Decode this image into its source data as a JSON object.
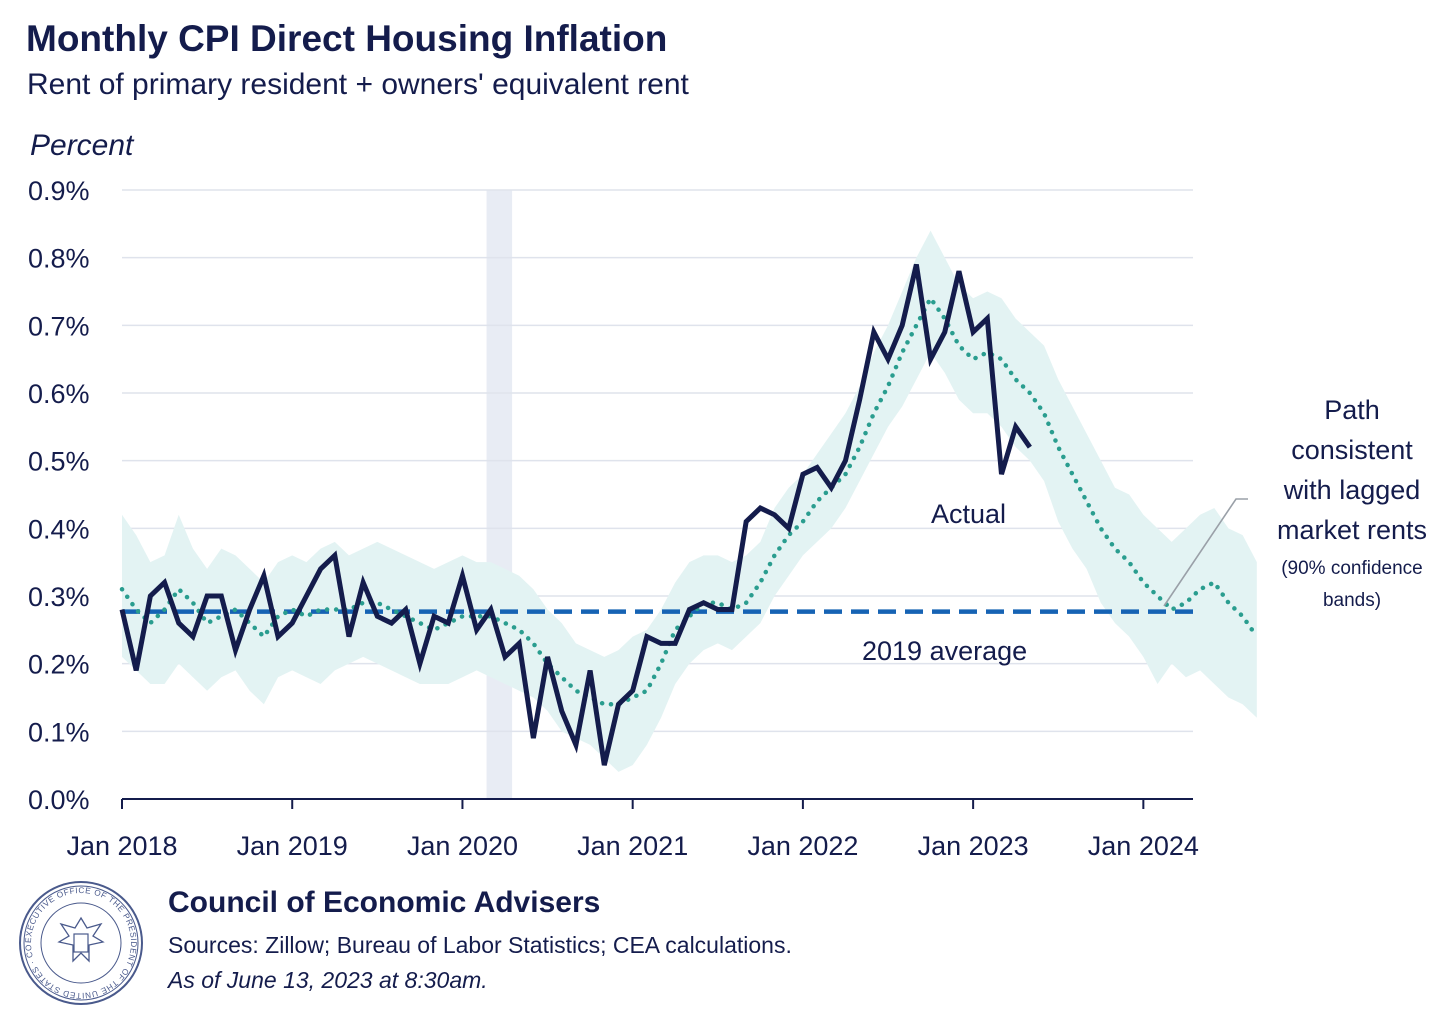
{
  "header": {
    "title": "Monthly CPI Direct Housing Inflation",
    "subtitle": "Rent of primary resident + owners' equivalent rent"
  },
  "footer": {
    "organization": "Council of Economic Advisers",
    "sources": "Sources: Zillow; Bureau of Labor Statistics; CEA calculations.",
    "as_of": "As of June 13, 2023 at 8:30am.",
    "seal_text": "EXECUTIVE OFFICE OF THE PRESIDENT OF THE UNITED STATES · COUNCIL OF ECONOMIC ADVISERS"
  },
  "colors": {
    "navy": "#141c4c",
    "teal": "#2a9d8f",
    "band": "#e3f3f3",
    "recession": "#e8ecf4",
    "average": "#1663b4",
    "grid": "#dfe3ec"
  },
  "chart_data": {
    "type": "line",
    "title": "Monthly CPI Direct Housing Inflation",
    "subtitle": "Rent of primary resident + owners' equivalent rent",
    "ylabel": "Percent",
    "ylim": [
      0,
      0.9
    ],
    "yticks": [
      0,
      0.1,
      0.2,
      0.3,
      0.4,
      0.5,
      0.6,
      0.7,
      0.8,
      0.9
    ],
    "ytick_labels": [
      "0.0%",
      "0.1%",
      "0.2%",
      "0.3%",
      "0.4%",
      "0.5%",
      "0.6%",
      "0.7%",
      "0.8%",
      "0.9%"
    ],
    "x_start": "Jan 2018",
    "xlim_month_index": [
      0,
      75.5
    ],
    "xtick_labels": [
      "Jan 2018",
      "Jan 2019",
      "Jan 2020",
      "Jan 2021",
      "Jan 2022",
      "Jan 2023",
      "Jan 2024"
    ],
    "xtick_month_index": [
      0,
      12,
      24,
      36,
      48,
      60,
      72
    ],
    "recession_shading_month_index": [
      25.7,
      27.5
    ],
    "series": [
      {
        "name": "Actual",
        "style": "solid",
        "start_month_index": 0,
        "values": [
          0.28,
          0.19,
          0.3,
          0.32,
          0.26,
          0.24,
          0.3,
          0.3,
          0.22,
          0.28,
          0.33,
          0.24,
          0.26,
          0.3,
          0.34,
          0.36,
          0.24,
          0.32,
          0.27,
          0.26,
          0.28,
          0.2,
          0.27,
          0.26,
          0.33,
          0.25,
          0.28,
          0.21,
          0.23,
          0.09,
          0.21,
          0.13,
          0.08,
          0.19,
          0.05,
          0.14,
          0.16,
          0.24,
          0.23,
          0.23,
          0.28,
          0.29,
          0.28,
          0.28,
          0.41,
          0.43,
          0.42,
          0.4,
          0.48,
          0.49,
          0.46,
          0.5,
          0.59,
          0.69,
          0.65,
          0.7,
          0.79,
          0.65,
          0.69,
          0.78,
          0.69,
          0.71,
          0.48,
          0.55,
          0.52
        ]
      },
      {
        "name": "Path consistent with lagged market rents",
        "style": "dotted",
        "start_month_index": 0,
        "values": [
          0.31,
          0.28,
          0.26,
          0.28,
          0.31,
          0.29,
          0.26,
          0.27,
          0.28,
          0.26,
          0.24,
          0.27,
          0.28,
          0.27,
          0.28,
          0.28,
          0.28,
          0.29,
          0.29,
          0.28,
          0.27,
          0.26,
          0.25,
          0.26,
          0.27,
          0.27,
          0.27,
          0.26,
          0.25,
          0.23,
          0.2,
          0.18,
          0.16,
          0.15,
          0.14,
          0.14,
          0.15,
          0.16,
          0.2,
          0.25,
          0.27,
          0.29,
          0.29,
          0.28,
          0.29,
          0.32,
          0.36,
          0.39,
          0.41,
          0.44,
          0.46,
          0.48,
          0.52,
          0.57,
          0.61,
          0.66,
          0.7,
          0.74,
          0.71,
          0.67,
          0.65,
          0.66,
          0.65,
          0.62,
          0.6,
          0.57,
          0.52,
          0.48,
          0.44,
          0.4,
          0.37,
          0.35,
          0.32,
          0.3,
          0.28,
          0.29,
          0.31,
          0.32,
          0.29,
          0.27,
          0.24
        ]
      },
      {
        "name": "90% confidence bands",
        "style": "band",
        "start_month_index": 0,
        "lower": [
          0.21,
          0.19,
          0.17,
          0.17,
          0.2,
          0.18,
          0.16,
          0.18,
          0.19,
          0.16,
          0.14,
          0.18,
          0.19,
          0.18,
          0.17,
          0.19,
          0.2,
          0.21,
          0.2,
          0.19,
          0.18,
          0.17,
          0.17,
          0.17,
          0.18,
          0.19,
          0.18,
          0.17,
          0.16,
          0.15,
          0.13,
          0.1,
          0.09,
          0.08,
          0.06,
          0.04,
          0.05,
          0.08,
          0.12,
          0.17,
          0.2,
          0.22,
          0.23,
          0.22,
          0.24,
          0.26,
          0.3,
          0.33,
          0.36,
          0.38,
          0.4,
          0.43,
          0.47,
          0.51,
          0.55,
          0.58,
          0.62,
          0.66,
          0.63,
          0.59,
          0.57,
          0.57,
          0.55,
          0.52,
          0.5,
          0.47,
          0.41,
          0.37,
          0.34,
          0.29,
          0.26,
          0.24,
          0.21,
          0.17,
          0.2,
          0.18,
          0.19,
          0.17,
          0.15,
          0.14,
          0.12
        ],
        "upper": [
          0.42,
          0.39,
          0.35,
          0.36,
          0.42,
          0.37,
          0.34,
          0.37,
          0.36,
          0.34,
          0.32,
          0.35,
          0.36,
          0.35,
          0.37,
          0.38,
          0.36,
          0.37,
          0.38,
          0.37,
          0.36,
          0.35,
          0.34,
          0.35,
          0.36,
          0.35,
          0.35,
          0.34,
          0.33,
          0.31,
          0.28,
          0.26,
          0.23,
          0.22,
          0.21,
          0.22,
          0.24,
          0.25,
          0.28,
          0.32,
          0.35,
          0.36,
          0.36,
          0.35,
          0.36,
          0.38,
          0.43,
          0.46,
          0.48,
          0.51,
          0.54,
          0.57,
          0.61,
          0.66,
          0.7,
          0.75,
          0.8,
          0.84,
          0.8,
          0.76,
          0.74,
          0.75,
          0.74,
          0.71,
          0.69,
          0.67,
          0.62,
          0.58,
          0.54,
          0.5,
          0.46,
          0.45,
          0.42,
          0.4,
          0.38,
          0.4,
          0.42,
          0.43,
          0.4,
          0.39,
          0.35
        ]
      }
    ],
    "reference_line": {
      "name": "2019 average",
      "value": 0.277
    },
    "annotations": {
      "actual_label": "Actual",
      "average_label": "2019 average",
      "path_label_lines": [
        "Path",
        "consistent",
        "with lagged",
        "market rents"
      ],
      "band_label_lines": [
        "(90% confidence",
        "bands)"
      ]
    }
  }
}
